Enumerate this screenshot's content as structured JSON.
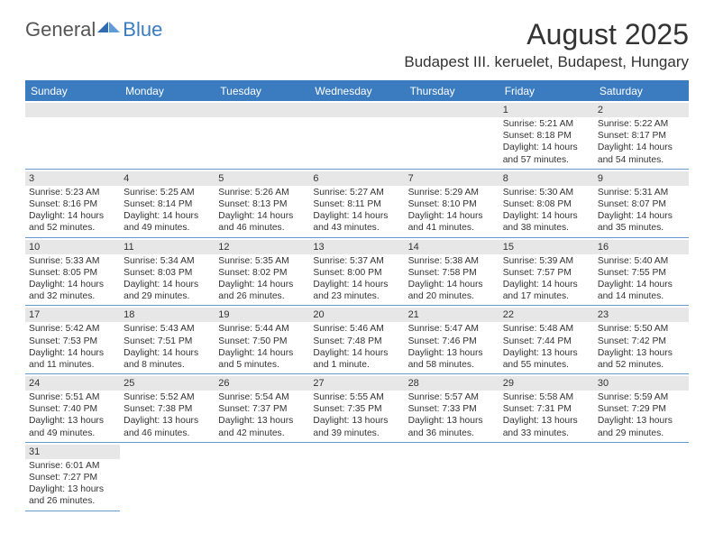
{
  "logo": {
    "general": "General",
    "blue": "Blue"
  },
  "title": "August 2025",
  "location": "Budapest III. keruelet, Budapest, Hungary",
  "colors": {
    "header_bg": "#3b7bbf",
    "row_border": "#6699cc",
    "daynum_bg": "#e7e7e7",
    "text": "#333333",
    "white": "#ffffff"
  },
  "dow": [
    "Sunday",
    "Monday",
    "Tuesday",
    "Wednesday",
    "Thursday",
    "Friday",
    "Saturday"
  ],
  "weeks": [
    [
      {
        "n": "",
        "sr": "",
        "ss": "",
        "dl1": "",
        "dl2": ""
      },
      {
        "n": "",
        "sr": "",
        "ss": "",
        "dl1": "",
        "dl2": ""
      },
      {
        "n": "",
        "sr": "",
        "ss": "",
        "dl1": "",
        "dl2": ""
      },
      {
        "n": "",
        "sr": "",
        "ss": "",
        "dl1": "",
        "dl2": ""
      },
      {
        "n": "",
        "sr": "",
        "ss": "",
        "dl1": "",
        "dl2": ""
      },
      {
        "n": "1",
        "sr": "Sunrise: 5:21 AM",
        "ss": "Sunset: 8:18 PM",
        "dl1": "Daylight: 14 hours",
        "dl2": "and 57 minutes."
      },
      {
        "n": "2",
        "sr": "Sunrise: 5:22 AM",
        "ss": "Sunset: 8:17 PM",
        "dl1": "Daylight: 14 hours",
        "dl2": "and 54 minutes."
      }
    ],
    [
      {
        "n": "3",
        "sr": "Sunrise: 5:23 AM",
        "ss": "Sunset: 8:16 PM",
        "dl1": "Daylight: 14 hours",
        "dl2": "and 52 minutes."
      },
      {
        "n": "4",
        "sr": "Sunrise: 5:25 AM",
        "ss": "Sunset: 8:14 PM",
        "dl1": "Daylight: 14 hours",
        "dl2": "and 49 minutes."
      },
      {
        "n": "5",
        "sr": "Sunrise: 5:26 AM",
        "ss": "Sunset: 8:13 PM",
        "dl1": "Daylight: 14 hours",
        "dl2": "and 46 minutes."
      },
      {
        "n": "6",
        "sr": "Sunrise: 5:27 AM",
        "ss": "Sunset: 8:11 PM",
        "dl1": "Daylight: 14 hours",
        "dl2": "and 43 minutes."
      },
      {
        "n": "7",
        "sr": "Sunrise: 5:29 AM",
        "ss": "Sunset: 8:10 PM",
        "dl1": "Daylight: 14 hours",
        "dl2": "and 41 minutes."
      },
      {
        "n": "8",
        "sr": "Sunrise: 5:30 AM",
        "ss": "Sunset: 8:08 PM",
        "dl1": "Daylight: 14 hours",
        "dl2": "and 38 minutes."
      },
      {
        "n": "9",
        "sr": "Sunrise: 5:31 AM",
        "ss": "Sunset: 8:07 PM",
        "dl1": "Daylight: 14 hours",
        "dl2": "and 35 minutes."
      }
    ],
    [
      {
        "n": "10",
        "sr": "Sunrise: 5:33 AM",
        "ss": "Sunset: 8:05 PM",
        "dl1": "Daylight: 14 hours",
        "dl2": "and 32 minutes."
      },
      {
        "n": "11",
        "sr": "Sunrise: 5:34 AM",
        "ss": "Sunset: 8:03 PM",
        "dl1": "Daylight: 14 hours",
        "dl2": "and 29 minutes."
      },
      {
        "n": "12",
        "sr": "Sunrise: 5:35 AM",
        "ss": "Sunset: 8:02 PM",
        "dl1": "Daylight: 14 hours",
        "dl2": "and 26 minutes."
      },
      {
        "n": "13",
        "sr": "Sunrise: 5:37 AM",
        "ss": "Sunset: 8:00 PM",
        "dl1": "Daylight: 14 hours",
        "dl2": "and 23 minutes."
      },
      {
        "n": "14",
        "sr": "Sunrise: 5:38 AM",
        "ss": "Sunset: 7:58 PM",
        "dl1": "Daylight: 14 hours",
        "dl2": "and 20 minutes."
      },
      {
        "n": "15",
        "sr": "Sunrise: 5:39 AM",
        "ss": "Sunset: 7:57 PM",
        "dl1": "Daylight: 14 hours",
        "dl2": "and 17 minutes."
      },
      {
        "n": "16",
        "sr": "Sunrise: 5:40 AM",
        "ss": "Sunset: 7:55 PM",
        "dl1": "Daylight: 14 hours",
        "dl2": "and 14 minutes."
      }
    ],
    [
      {
        "n": "17",
        "sr": "Sunrise: 5:42 AM",
        "ss": "Sunset: 7:53 PM",
        "dl1": "Daylight: 14 hours",
        "dl2": "and 11 minutes."
      },
      {
        "n": "18",
        "sr": "Sunrise: 5:43 AM",
        "ss": "Sunset: 7:51 PM",
        "dl1": "Daylight: 14 hours",
        "dl2": "and 8 minutes."
      },
      {
        "n": "19",
        "sr": "Sunrise: 5:44 AM",
        "ss": "Sunset: 7:50 PM",
        "dl1": "Daylight: 14 hours",
        "dl2": "and 5 minutes."
      },
      {
        "n": "20",
        "sr": "Sunrise: 5:46 AM",
        "ss": "Sunset: 7:48 PM",
        "dl1": "Daylight: 14 hours",
        "dl2": "and 1 minute."
      },
      {
        "n": "21",
        "sr": "Sunrise: 5:47 AM",
        "ss": "Sunset: 7:46 PM",
        "dl1": "Daylight: 13 hours",
        "dl2": "and 58 minutes."
      },
      {
        "n": "22",
        "sr": "Sunrise: 5:48 AM",
        "ss": "Sunset: 7:44 PM",
        "dl1": "Daylight: 13 hours",
        "dl2": "and 55 minutes."
      },
      {
        "n": "23",
        "sr": "Sunrise: 5:50 AM",
        "ss": "Sunset: 7:42 PM",
        "dl1": "Daylight: 13 hours",
        "dl2": "and 52 minutes."
      }
    ],
    [
      {
        "n": "24",
        "sr": "Sunrise: 5:51 AM",
        "ss": "Sunset: 7:40 PM",
        "dl1": "Daylight: 13 hours",
        "dl2": "and 49 minutes."
      },
      {
        "n": "25",
        "sr": "Sunrise: 5:52 AM",
        "ss": "Sunset: 7:38 PM",
        "dl1": "Daylight: 13 hours",
        "dl2": "and 46 minutes."
      },
      {
        "n": "26",
        "sr": "Sunrise: 5:54 AM",
        "ss": "Sunset: 7:37 PM",
        "dl1": "Daylight: 13 hours",
        "dl2": "and 42 minutes."
      },
      {
        "n": "27",
        "sr": "Sunrise: 5:55 AM",
        "ss": "Sunset: 7:35 PM",
        "dl1": "Daylight: 13 hours",
        "dl2": "and 39 minutes."
      },
      {
        "n": "28",
        "sr": "Sunrise: 5:57 AM",
        "ss": "Sunset: 7:33 PM",
        "dl1": "Daylight: 13 hours",
        "dl2": "and 36 minutes."
      },
      {
        "n": "29",
        "sr": "Sunrise: 5:58 AM",
        "ss": "Sunset: 7:31 PM",
        "dl1": "Daylight: 13 hours",
        "dl2": "and 33 minutes."
      },
      {
        "n": "30",
        "sr": "Sunrise: 5:59 AM",
        "ss": "Sunset: 7:29 PM",
        "dl1": "Daylight: 13 hours",
        "dl2": "and 29 minutes."
      }
    ],
    [
      {
        "n": "31",
        "sr": "Sunrise: 6:01 AM",
        "ss": "Sunset: 7:27 PM",
        "dl1": "Daylight: 13 hours",
        "dl2": "and 26 minutes."
      },
      {
        "n": "",
        "sr": "",
        "ss": "",
        "dl1": "",
        "dl2": ""
      },
      {
        "n": "",
        "sr": "",
        "ss": "",
        "dl1": "",
        "dl2": ""
      },
      {
        "n": "",
        "sr": "",
        "ss": "",
        "dl1": "",
        "dl2": ""
      },
      {
        "n": "",
        "sr": "",
        "ss": "",
        "dl1": "",
        "dl2": ""
      },
      {
        "n": "",
        "sr": "",
        "ss": "",
        "dl1": "",
        "dl2": ""
      },
      {
        "n": "",
        "sr": "",
        "ss": "",
        "dl1": "",
        "dl2": ""
      }
    ]
  ]
}
